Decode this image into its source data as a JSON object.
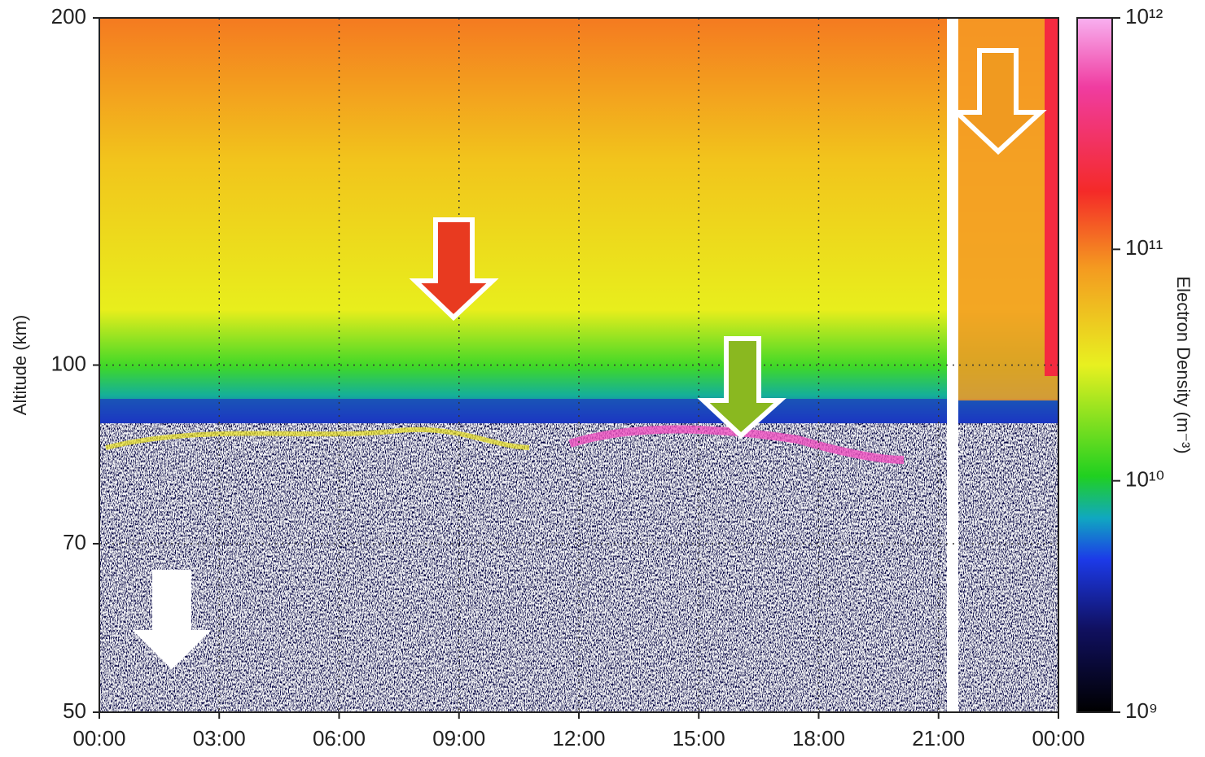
{
  "chart_data": {
    "type": "heatmap",
    "ylabel": "Altitude (km)",
    "ylim": [
      50,
      200
    ],
    "yticks": [
      50,
      70,
      100,
      200
    ],
    "ylog": true,
    "xlim": [
      0,
      24
    ],
    "xticks": [
      {
        "value": 0,
        "label": "00:00"
      },
      {
        "value": 3,
        "label": "03:00"
      },
      {
        "value": 6,
        "label": "06:00"
      },
      {
        "value": 9,
        "label": "09:00"
      },
      {
        "value": 12,
        "label": "12:00"
      },
      {
        "value": 15,
        "label": "15:00"
      },
      {
        "value": 18,
        "label": "18:00"
      },
      {
        "value": 21,
        "label": "21:00"
      },
      {
        "value": 24,
        "label": "00:00"
      }
    ],
    "grid": true,
    "colorbar": {
      "label": "Electron Density (m⁻³)",
      "lim": [
        1000000000,
        1000000000000
      ],
      "log": true,
      "ticks": [
        {
          "value": 1000000000,
          "label": "10⁹"
        },
        {
          "value": 10000000000,
          "label": "10¹⁰"
        },
        {
          "value": 100000000000,
          "label": "10¹¹"
        },
        {
          "value": 1000000000000,
          "label": "10¹²"
        }
      ]
    }
  }
}
